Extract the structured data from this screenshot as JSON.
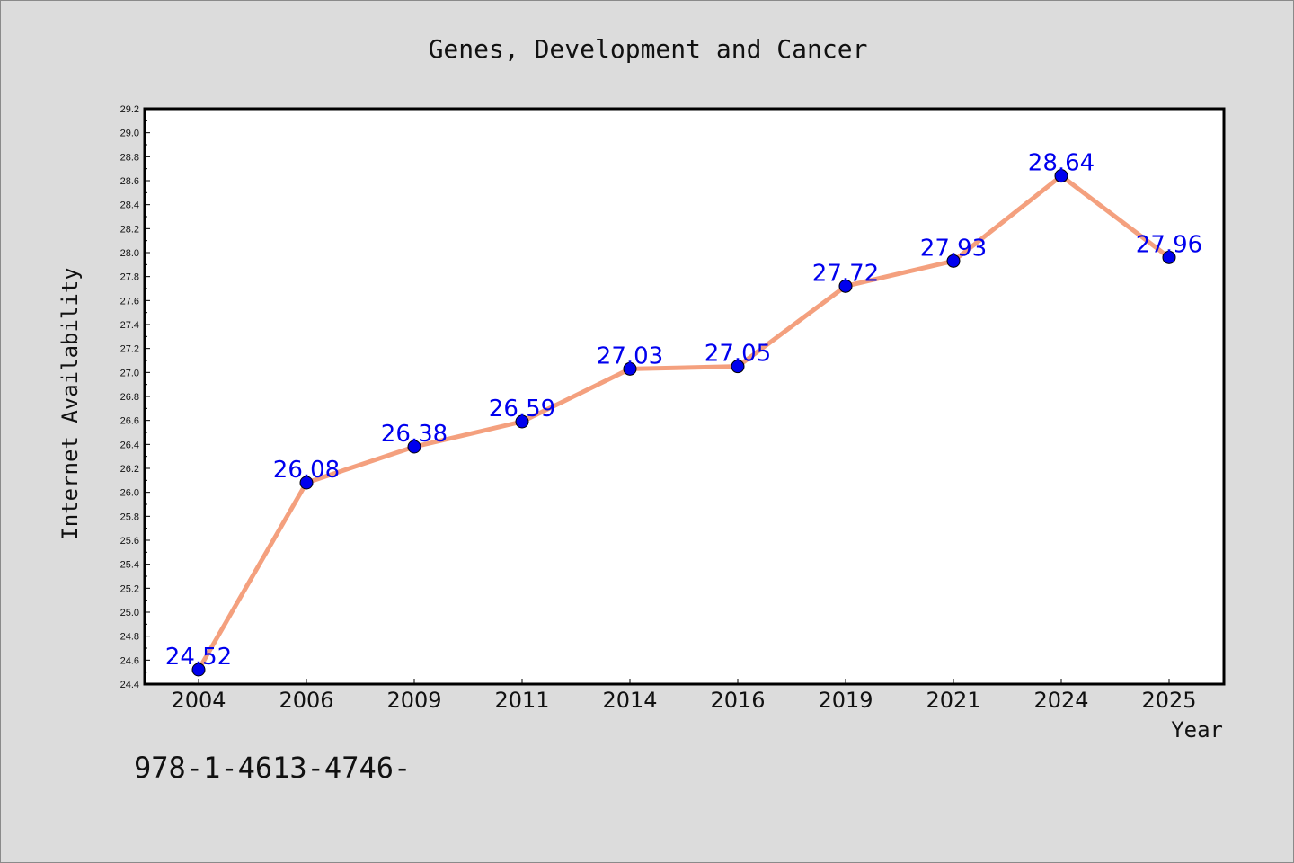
{
  "chart_data": {
    "type": "line",
    "title": "Genes, Development and Cancer",
    "xlabel": "Year",
    "ylabel": "Internet Availability",
    "categories": [
      "2004",
      "2006",
      "2009",
      "2011",
      "2014",
      "2016",
      "2019",
      "2021",
      "2024",
      "2025"
    ],
    "series": [
      {
        "values": [
          24.52,
          26.08,
          26.38,
          26.59,
          27.03,
          27.05,
          27.72,
          27.93,
          28.64,
          27.96
        ],
        "line_color": "#f4a07e",
        "marker_color": "#0000ee",
        "label_color": "#0000ee"
      }
    ],
    "ylim": [
      24.4,
      29.2
    ],
    "ytick_step": 0.2,
    "grid": false,
    "legend": "none",
    "data_labels": true
  },
  "footer": {
    "text": "978-1-4613-4746-"
  }
}
